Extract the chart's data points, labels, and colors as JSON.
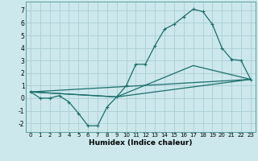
{
  "xlabel": "Humidex (Indice chaleur)",
  "background_color": "#cce8ec",
  "grid_color": "#aacdd4",
  "line_color": "#1a6e6a",
  "xlim": [
    -0.5,
    23.5
  ],
  "ylim": [
    -2.7,
    7.7
  ],
  "xticks": [
    0,
    1,
    2,
    3,
    4,
    5,
    6,
    7,
    8,
    9,
    10,
    11,
    12,
    13,
    14,
    15,
    16,
    17,
    18,
    19,
    20,
    21,
    22,
    23
  ],
  "yticks": [
    -2,
    -1,
    0,
    1,
    2,
    3,
    4,
    5,
    6,
    7
  ],
  "main_line": {
    "x": [
      0,
      1,
      2,
      3,
      4,
      5,
      6,
      7,
      8,
      9,
      10,
      11,
      12,
      13,
      14,
      15,
      16,
      17,
      18,
      19,
      20,
      21,
      22,
      23
    ],
    "y": [
      0.5,
      0.0,
      0.0,
      0.2,
      -0.3,
      -1.2,
      -2.2,
      -2.2,
      -0.7,
      0.1,
      1.0,
      2.7,
      2.7,
      4.2,
      5.5,
      5.9,
      6.5,
      7.1,
      6.9,
      5.9,
      4.0,
      3.1,
      3.0,
      1.5
    ]
  },
  "extra_lines": [
    {
      "x": [
        0,
        23
      ],
      "y": [
        0.5,
        1.5
      ]
    },
    {
      "x": [
        0,
        9,
        23
      ],
      "y": [
        0.5,
        0.1,
        1.5
      ]
    },
    {
      "x": [
        0,
        9,
        17,
        23
      ],
      "y": [
        0.5,
        0.1,
        2.6,
        1.5
      ]
    }
  ]
}
